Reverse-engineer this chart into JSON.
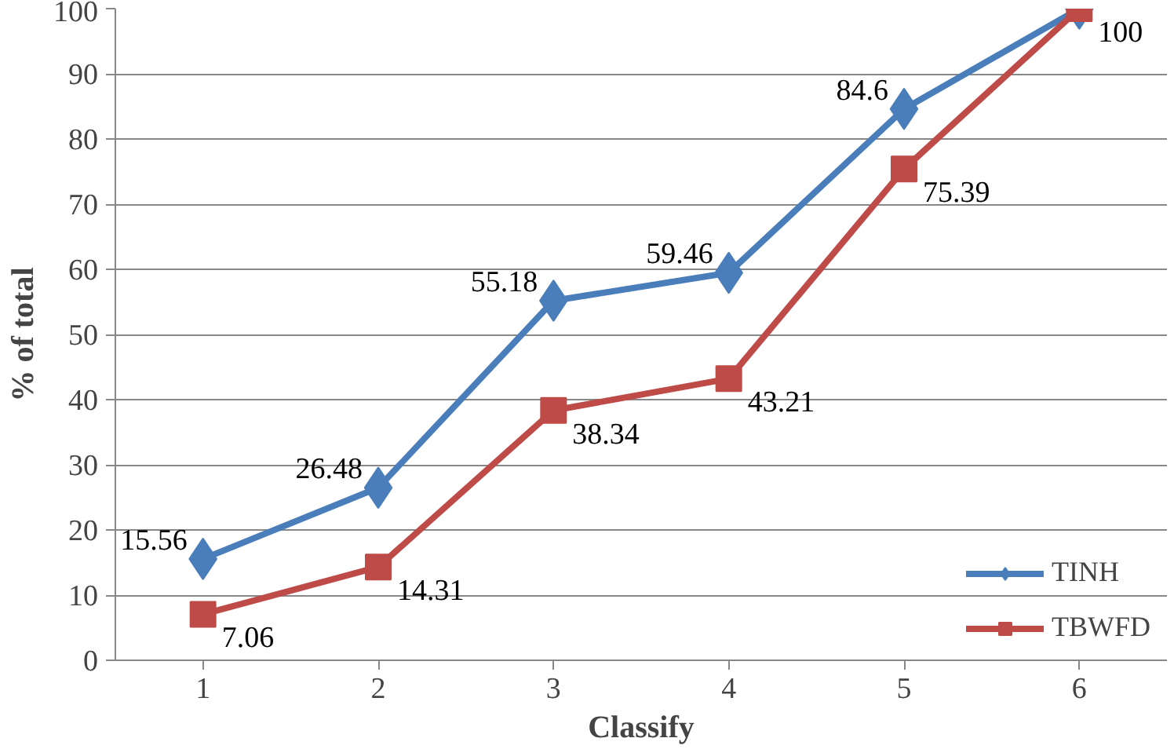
{
  "chart_data": {
    "type": "line",
    "xlabel": "Classify",
    "ylabel": "% of total",
    "categories": [
      "1",
      "2",
      "3",
      "4",
      "5",
      "6"
    ],
    "series": [
      {
        "name": "TINH",
        "color": "#4a7ebb",
        "marker": "diamond",
        "values": [
          15.56,
          26.48,
          55.18,
          59.46,
          84.6,
          100
        ],
        "value_labels": [
          "15.56",
          "26.48",
          "55.18",
          "59.46",
          "84.6",
          null
        ]
      },
      {
        "name": "TBWFD",
        "color": "#be4b48",
        "marker": "square",
        "values": [
          7.06,
          14.31,
          38.34,
          43.21,
          75.39,
          100
        ],
        "value_labels": [
          "7.06",
          "14.31",
          "38.34",
          "43.21",
          "75.39",
          "100"
        ]
      }
    ],
    "ylim": [
      0,
      100
    ],
    "yticks": [
      0,
      10,
      20,
      30,
      40,
      50,
      60,
      70,
      80,
      90,
      100
    ],
    "grid": "y",
    "legend": "bottom right"
  }
}
